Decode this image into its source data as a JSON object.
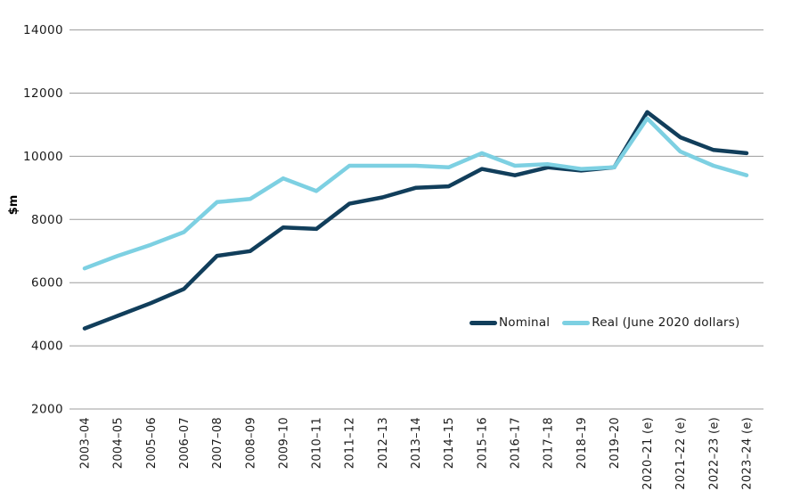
{
  "chart_data": {
    "type": "line",
    "title": "",
    "xlabel": "",
    "ylabel": "$m",
    "ylim": [
      2000,
      14000
    ],
    "ytick_step": 2000,
    "grid": "horizontal",
    "grid_color": "#9c9c9c",
    "axis_text_color": "#1a1a1a",
    "legend_position": "inside-lower-right",
    "categories": [
      "2003–04",
      "2004–05",
      "2005–06",
      "2006–07",
      "2007–08",
      "2008–09",
      "2009–10",
      "2010–11",
      "2011–12",
      "2012–13",
      "2013–14",
      "2014–15",
      "2015–16",
      "2016–17",
      "2017–18",
      "2018–19",
      "2019–20",
      "2020–21 (e)",
      "2021–22 (e)",
      "2022–23 (e)",
      "2023–24 (e)"
    ],
    "series": [
      {
        "name": "Nominal",
        "color": "#113e5b",
        "values": [
          4550,
          4950,
          5350,
          5800,
          6850,
          7000,
          7750,
          7700,
          8500,
          8700,
          9000,
          9050,
          9600,
          9400,
          9650,
          9550,
          9650,
          11400,
          10600,
          10200,
          10100
        ]
      },
      {
        "name": "Real (June 2020 dollars)",
        "color": "#7dd0e2",
        "values": [
          6450,
          6850,
          7200,
          7600,
          8550,
          8650,
          9300,
          8900,
          9700,
          9700,
          9700,
          9650,
          10100,
          9700,
          9750,
          9600,
          9650,
          11200,
          10150,
          9700,
          9400
        ]
      }
    ]
  }
}
